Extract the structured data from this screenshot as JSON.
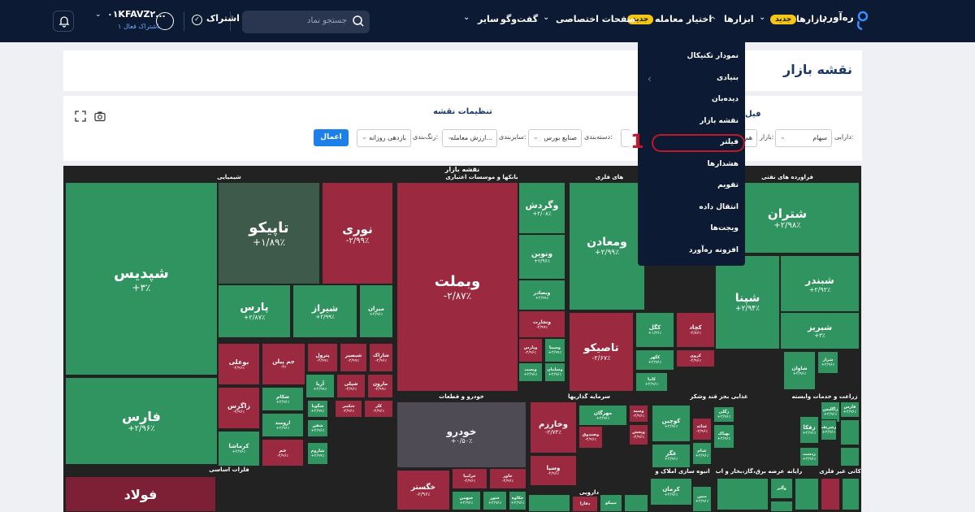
{
  "nav": {
    "logo": "ره‌آورد",
    "items": [
      "بازارها",
      "ابزارها",
      "اختیار معامله",
      "صفحات اختصاصی",
      "گفت‌وگو",
      "سایر"
    ],
    "badge_new": "جدید",
    "search_placeholder": "جستجو نماد",
    "subscribe": "اشتراک",
    "user_id": "۰۱KFAVZ۲...",
    "user_sub": "۱ اشتراک فعال"
  },
  "dropdown": {
    "items": [
      "نمودار تکنیکال",
      "بنیادی",
      "دیده‌بان",
      "نقشه بازار",
      "فیلتر",
      "هشدارها",
      "تقویم",
      "انتقال داده",
      "ویجت‌ها",
      "افزونه ره‌آورد"
    ]
  },
  "annotation": "1",
  "page_title": "نقشه بازار",
  "settings": {
    "title": "تنظیمات نقشه",
    "filter_cut": "فیل",
    "asset_label": "دارایی:",
    "asset_value": "سهام",
    "market_label": "بازار:",
    "market_value": "هم",
    "group_label": "دسته‌بندی:",
    "group_value": "صنایع بورس",
    "size_label": "سایزبندی:",
    "size_value": "ارزش معامله...",
    "color_label": "رنگ‌بندی:",
    "color_value": "بازدهی روزانه",
    "apply": "اعمال"
  },
  "map": {
    "title": "نقشه بازار",
    "sectors": [
      "شیمیایی",
      "بانکها و موسسات اعتباری",
      "های فلزی",
      "فراورده های نفتی",
      "خودرو و قطعات",
      "سرمایه گذاریها",
      "غذایی بجز قند وشکر",
      "زراعت و خدمات وابسته",
      "فلزات اساسی",
      "انبوه سازی املاک و",
      "عرضه برق،گاز،بخار و آب",
      "دارویی",
      "رایانه",
      "کانی غیر فلزی"
    ],
    "tiles": [
      {
        "n": "شپدیس",
        "p": "+۳٪"
      },
      {
        "n": "فارس",
        "p": "+۲/۹۶٪"
      },
      {
        "n": "تاپیکو",
        "p": "+۱/۸۹٪"
      },
      {
        "n": "نوری",
        "p": "-۲/۹۹٪"
      },
      {
        "n": "پارس",
        "p": "+۲/۸۷٪"
      },
      {
        "n": "شیراز",
        "p": "+۲/۹۹٪"
      },
      {
        "n": "میران",
        "p": "+۲/۹۶٪"
      },
      {
        "n": "بوعلی",
        "p": "-۲/۹۶٪"
      },
      {
        "n": "جم پیلن",
        "p": "-۳٪"
      },
      {
        "n": "پترول",
        "p": "-۲/۹۹٪"
      },
      {
        "n": "شبصیر",
        "p": "-۲/۹۹٪"
      },
      {
        "n": "شاراک",
        "p": "-۲/۹۶٪"
      },
      {
        "n": "آریا",
        "p": "+۲/۹۹٪"
      },
      {
        "n": "شپلی",
        "p": "-۲/۹۶٪"
      },
      {
        "n": "مارون",
        "p": "-۲/۹۹٪"
      },
      {
        "n": "زاگرس",
        "p": "-۲/۹۶٪"
      },
      {
        "n": "شکام",
        "p": "+۲/۹۶٪"
      },
      {
        "n": "شگویا",
        "p": "+۲/۹۹٪"
      },
      {
        "n": "شکبیر",
        "p": "-۲/۹۶٪"
      },
      {
        "n": "کلر",
        "p": "-۲/۹۶٪"
      },
      {
        "n": "ارومند",
        "p": "+۲/۹۶٪"
      },
      {
        "n": "شفن",
        "p": "+۲/۹۶٪"
      },
      {
        "n": "کرماشا",
        "p": "+۲/۹۶٪"
      },
      {
        "n": "جم",
        "p": "-۲/۹۶٪"
      },
      {
        "n": "شاروم",
        "p": "+۲/۹۹٪"
      },
      {
        "n": "وبملت",
        "p": "-۲/۸۷٪"
      },
      {
        "n": "وگردش",
        "p": "+۲/۰۸٪"
      },
      {
        "n": "ونوین",
        "p": "+۲/۹۶٪"
      },
      {
        "n": "وبصادر",
        "p": "+۲/۹۹٪"
      },
      {
        "n": "ونجارت",
        "p": "-۲/۹۹٪"
      },
      {
        "n": "وپارس",
        "p": "-۲/۹۶٪"
      },
      {
        "n": "وسینا",
        "p": "+۲/۹۹٪"
      },
      {
        "n": "وپست",
        "p": "+۲/۹۶٪"
      },
      {
        "n": "وسامان",
        "p": "+۲/۹۶٪"
      },
      {
        "n": "ومعادن",
        "p": "+۲/۹۹٪"
      },
      {
        "n": "تاصیکو",
        "p": "-۲/۶۷٪"
      },
      {
        "n": "کگل",
        "p": "+۱/۲۶٪"
      },
      {
        "n": "کچاد",
        "p": "-۲/۸۶٪"
      },
      {
        "n": "کگهر",
        "p": "+۲/۹۶٪"
      },
      {
        "n": "کروی",
        "p": "-۲/۹۶٪"
      },
      {
        "n": "کاما",
        "p": "+۲/۹۶٪"
      },
      {
        "n": "شتران",
        "p": "+۲/۹۸٪"
      },
      {
        "n": "شبندر",
        "p": "+۲/۹۲٪"
      },
      {
        "n": "شپنا",
        "p": "+۲/۹۴٪"
      },
      {
        "n": "شبریز",
        "p": "+۳٪"
      },
      {
        "n": "شاوان",
        "p": "+۲/۹۶٪"
      },
      {
        "n": "شراز",
        "p": "+۲/۹۶٪"
      },
      {
        "n": "خودرو",
        "p": "+۰/۵۰٪"
      },
      {
        "n": "خگستر",
        "p": "-۲/۹۶٪"
      },
      {
        "n": "خزامیا",
        "p": "-۲/۹۶٪"
      },
      {
        "n": "خاور",
        "p": "-۲/۹۶٪"
      },
      {
        "n": "خبهمن",
        "p": "+۲/۹۶٪"
      },
      {
        "n": "ختور",
        "p": "+۲/۹۶٪"
      },
      {
        "n": "خکاوه",
        "p": "+۲/۹۶٪"
      },
      {
        "n": "وخارزم",
        "p": "-۲/۷۴٪"
      },
      {
        "n": "وصندوق",
        "p": "-۲/۹۶٪"
      },
      {
        "n": "وسپا",
        "p": "-۲/۹۶٪"
      },
      {
        "n": "مهرگان",
        "p": "+۲/۹۶٪"
      },
      {
        "n": "وسیه",
        "p": "-۲/۹۶٪"
      },
      {
        "n": "وپخش",
        "p": "-۲/۹۶٪"
      },
      {
        "n": "کوچین",
        "p": "+۲/۹۶٪"
      },
      {
        "n": "غگز",
        "p": "+۲/۹۶٪"
      },
      {
        "n": "غدام",
        "p": "+۲/۹۶٪"
      },
      {
        "n": "غذائه",
        "p": "-۲/۹۶٪"
      },
      {
        "n": "بهپاک",
        "p": "+۲/۹۶٪"
      },
      {
        "n": "زگلی",
        "p": "+۲/۹۶٪"
      },
      {
        "n": "زاگلیس",
        "p": "+۲/۹۶٪"
      },
      {
        "n": "زفکا",
        "p": "+۲/۹۶٪"
      },
      {
        "n": "زشریف",
        "p": "+۲/۹۶٪"
      },
      {
        "n": "زدشت",
        "p": "+۲/۹۶٪"
      },
      {
        "n": "فارس",
        "p": "+۲/۹۶٪"
      },
      {
        "n": "فولاد",
        "p": ""
      },
      {
        "n": "کرمان",
        "p": "+۲/۹۶٪"
      },
      {
        "n": "مبین",
        "p": "+۲/۹۶٪"
      },
      {
        "n": "تیپیکو",
        "p": ""
      },
      {
        "n": "دفارا",
        "p": ""
      },
      {
        "n": "وآلبر",
        "p": ""
      },
      {
        "n": "سیستم",
        "p": "+۲/۹۶٪"
      }
    ]
  },
  "colors": {
    "up": "#2f9460",
    "down": "#9b2a40",
    "nav": "#0c1a33",
    "accent": "#1d7fe8",
    "highlight": "#c0182a"
  }
}
